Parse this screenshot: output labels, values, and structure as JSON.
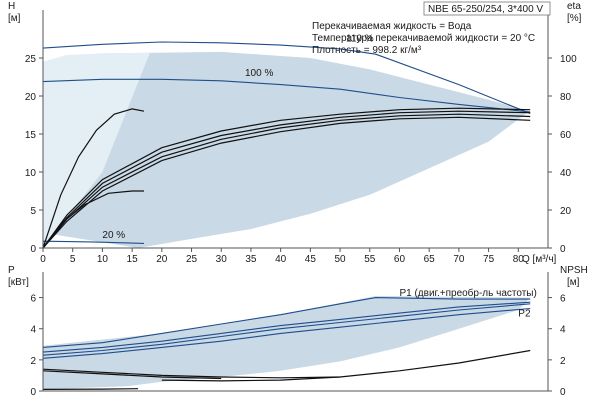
{
  "colors": {
    "envelope": "#c9d9e6",
    "envelope_light": "#e4eef5",
    "blue_curve": "#1f4e8c",
    "black_curve": "#111111",
    "axis": "#555555"
  },
  "header": {
    "model": "NBE 65-250/254, 3*400 V",
    "liquid": "Перекачиваемая жидкость = Вода",
    "temperature": "Температура перекачиваемой жидкости = 20 °C",
    "density": "Плотность = 998.2 кг/м³"
  },
  "chart_data": [
    {
      "type": "line",
      "name": "head-efficiency",
      "axes": {
        "x": {
          "label": "Q [м³/ч]",
          "min": 0,
          "max": 85,
          "ticks": [
            0,
            5,
            10,
            15,
            20,
            25,
            30,
            35,
            40,
            45,
            50,
            55,
            60,
            65,
            70,
            75,
            80
          ]
        },
        "y_left": {
          "label_top": "H",
          "label_unit": "[м]",
          "min": 0,
          "max": 30,
          "ticks": [
            0,
            5,
            10,
            15,
            20,
            25
          ]
        },
        "y_right": {
          "label_top": "eta",
          "label_unit": "[%]",
          "min": 0,
          "max": 120,
          "ticks": [
            0,
            20,
            40,
            60,
            80,
            100
          ]
        }
      },
      "labels": [
        {
          "text": "110 %",
          "x": 51,
          "y": 27.2
        },
        {
          "text": "100 %",
          "x": 34,
          "y": 22.6
        },
        {
          "text": "20 %",
          "x": 10,
          "y": 1.3
        }
      ],
      "envelope": [
        [
          16,
          0
        ],
        [
          25,
          1.2
        ],
        [
          35,
          2.5
        ],
        [
          45,
          4.5
        ],
        [
          55,
          7
        ],
        [
          65,
          10.5
        ],
        [
          75,
          14
        ],
        [
          81,
          17.5
        ],
        [
          82,
          18
        ],
        [
          75,
          19.5
        ],
        [
          65,
          21.5
        ],
        [
          55,
          23.5
        ],
        [
          45,
          25
        ],
        [
          30,
          25.8
        ],
        [
          10,
          25.6
        ],
        [
          5,
          25.3
        ],
        [
          0,
          2
        ]
      ],
      "envelope_light": [
        [
          0,
          0
        ],
        [
          10,
          10
        ],
        [
          18,
          25.7
        ],
        [
          10,
          25.6
        ],
        [
          4,
          25.4
        ],
        [
          0,
          24.5
        ]
      ],
      "series": [
        {
          "name": "110 %",
          "color": "blue",
          "points": [
            [
              0,
              26.3
            ],
            [
              10,
              26.8
            ],
            [
              20,
              27.1
            ],
            [
              30,
              27
            ],
            [
              40,
              26.7
            ],
            [
              50,
              26.2
            ],
            [
              56,
              25.5
            ],
            [
              70,
              21.5
            ],
            [
              82,
              17.7
            ]
          ]
        },
        {
          "name": "100 %",
          "color": "blue",
          "points": [
            [
              0,
              21.9
            ],
            [
              10,
              22.2
            ],
            [
              20,
              22.2
            ],
            [
              30,
              22
            ],
            [
              40,
              21.5
            ],
            [
              50,
              20.9
            ],
            [
              60,
              19.8
            ],
            [
              70,
              18.9
            ],
            [
              82,
              17.9
            ]
          ]
        },
        {
          "name": "20 %",
          "color": "blue",
          "points": [
            [
              0,
              0.9
            ],
            [
              8,
              0.8
            ],
            [
              17,
              0.6
            ]
          ]
        },
        {
          "name": "eta-1",
          "color": "black",
          "points": [
            [
              0,
              0
            ],
            [
              4,
              3.5
            ],
            [
              10,
              7.5
            ],
            [
              20,
              11.5
            ],
            [
              30,
              13.8
            ],
            [
              40,
              15.3
            ],
            [
              50,
              16.4
            ],
            [
              60,
              17
            ],
            [
              70,
              17.2
            ],
            [
              82,
              16.8
            ]
          ]
        },
        {
          "name": "eta-2",
          "color": "black",
          "points": [
            [
              0,
              0
            ],
            [
              4,
              3.8
            ],
            [
              10,
              8
            ],
            [
              20,
              12
            ],
            [
              30,
              14.3
            ],
            [
              40,
              15.8
            ],
            [
              50,
              16.8
            ],
            [
              60,
              17.4
            ],
            [
              70,
              17.6
            ],
            [
              82,
              17.3
            ]
          ]
        },
        {
          "name": "eta-3",
          "color": "black",
          "points": [
            [
              0,
              0
            ],
            [
              4,
              4
            ],
            [
              10,
              8.5
            ],
            [
              20,
              12.6
            ],
            [
              30,
              14.8
            ],
            [
              40,
              16.2
            ],
            [
              50,
              17.2
            ],
            [
              60,
              17.8
            ],
            [
              70,
              18
            ],
            [
              82,
              17.8
            ]
          ]
        },
        {
          "name": "eta-4",
          "color": "black",
          "points": [
            [
              0,
              0
            ],
            [
              4,
              4.3
            ],
            [
              10,
              9
            ],
            [
              20,
              13.2
            ],
            [
              30,
              15.4
            ],
            [
              40,
              16.8
            ],
            [
              50,
              17.6
            ],
            [
              60,
              18.2
            ],
            [
              70,
              18.4
            ],
            [
              82,
              18.2
            ]
          ]
        },
        {
          "name": "eta-5",
          "color": "black",
          "points": [
            [
              0,
              0
            ],
            [
              3,
              7
            ],
            [
              6,
              12
            ],
            [
              9,
              15.5
            ],
            [
              12,
              17.6
            ],
            [
              15,
              18.3
            ],
            [
              17,
              18
            ]
          ]
        },
        {
          "name": "eta-6",
          "color": "black",
          "points": [
            [
              0,
              0
            ],
            [
              3,
              3.2
            ],
            [
              7,
              5.7
            ],
            [
              11,
              7.2
            ],
            [
              15,
              7.5
            ],
            [
              17,
              7.5
            ]
          ]
        }
      ]
    },
    {
      "type": "line",
      "name": "power-npsh",
      "axes": {
        "x": {
          "min": 0,
          "max": 85
        },
        "y_left": {
          "label_top": "P",
          "label_unit": "[кВт]",
          "min": 0,
          "max": 7,
          "ticks": [
            0,
            2,
            4,
            6
          ]
        },
        "y_right": {
          "label_top": "NPSH",
          "label_unit": "[м]",
          "min": 0,
          "max": 7,
          "ticks": [
            0,
            2,
            4,
            6
          ]
        }
      },
      "labels": [
        {
          "text": "P1 (двиг.+преобр-ль частоты)",
          "x": 60,
          "y": 6.1
        },
        {
          "text": "P2",
          "x": 80,
          "y": 4.8
        }
      ],
      "envelope": [
        [
          0,
          2.9
        ],
        [
          20,
          3.7
        ],
        [
          40,
          4.9
        ],
        [
          56,
          6.1
        ],
        [
          82,
          6
        ],
        [
          80,
          5.2
        ],
        [
          70,
          4
        ],
        [
          60,
          2.8
        ],
        [
          50,
          1.9
        ],
        [
          40,
          1.3
        ],
        [
          30,
          0.9
        ],
        [
          20,
          0.6
        ],
        [
          14,
          0.3
        ],
        [
          0,
          0.1
        ]
      ],
      "series": [
        {
          "name": "P1-110",
          "color": "blue",
          "points": [
            [
              0,
              2.8
            ],
            [
              10,
              3.1
            ],
            [
              20,
              3.7
            ],
            [
              30,
              4.3
            ],
            [
              40,
              4.9
            ],
            [
              50,
              5.6
            ],
            [
              56,
              6
            ],
            [
              70,
              5.9
            ],
            [
              82,
              5.9
            ]
          ]
        },
        {
          "name": "P1-100",
          "color": "blue",
          "points": [
            [
              0,
              2.5
            ],
            [
              10,
              2.8
            ],
            [
              20,
              3.2
            ],
            [
              30,
              3.7
            ],
            [
              40,
              4.2
            ],
            [
              50,
              4.6
            ],
            [
              60,
              5
            ],
            [
              70,
              5.4
            ],
            [
              82,
              5.7
            ]
          ]
        },
        {
          "name": "P2-110",
          "color": "blue",
          "points": [
            [
              0,
              2.3
            ],
            [
              10,
              2.6
            ],
            [
              20,
              3
            ],
            [
              30,
              3.5
            ],
            [
              40,
              4
            ],
            [
              50,
              4.4
            ],
            [
              60,
              4.8
            ],
            [
              70,
              5.2
            ],
            [
              82,
              5.6
            ]
          ]
        },
        {
          "name": "P2-100",
          "color": "blue",
          "points": [
            [
              0,
              2.1
            ],
            [
              10,
              2.4
            ],
            [
              20,
              2.8
            ],
            [
              30,
              3.2
            ],
            [
              40,
              3.7
            ],
            [
              50,
              4.1
            ],
            [
              60,
              4.5
            ],
            [
              70,
              4.9
            ],
            [
              82,
              5.3
            ]
          ]
        },
        {
          "name": "P-20-1",
          "color": "black",
          "points": [
            [
              0,
              1.4
            ],
            [
              10,
              1.2
            ],
            [
              20,
              1
            ],
            [
              30,
              0.9
            ],
            [
              40,
              0.85
            ],
            [
              50,
              0.9
            ]
          ]
        },
        {
          "name": "P-20-2",
          "color": "black",
          "points": [
            [
              0,
              1.3
            ],
            [
              10,
              1.1
            ],
            [
              20,
              0.9
            ],
            [
              30,
              0.8
            ]
          ]
        },
        {
          "name": "NPSH",
          "color": "black",
          "points": [
            [
              20,
              0.7
            ],
            [
              30,
              0.65
            ],
            [
              40,
              0.7
            ],
            [
              50,
              0.9
            ],
            [
              60,
              1.3
            ],
            [
              70,
              1.8
            ],
            [
              82,
              2.6
            ]
          ]
        },
        {
          "name": "P-20-low",
          "color": "black",
          "points": [
            [
              0,
              0.1
            ],
            [
              10,
              0.12
            ],
            [
              16,
              0.15
            ]
          ]
        }
      ]
    }
  ]
}
